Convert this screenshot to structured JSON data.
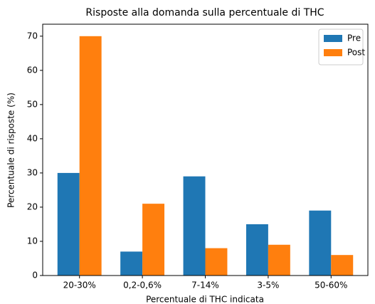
{
  "chart_data": {
    "type": "bar",
    "title": "Risposte alla domanda sulla percentuale di THC",
    "x_label": "Percentuale di THC indicata",
    "y_label": "Percentuale di risposte (%)",
    "categories": [
      "20-30%",
      "0,2-0,6%",
      "7-14%",
      "3-5%",
      "50-60%"
    ],
    "series": [
      {
        "name": "Pre",
        "color": "#1f77b4",
        "values": [
          30,
          7,
          29,
          15,
          19
        ]
      },
      {
        "name": "Post",
        "color": "#ff7f0e",
        "values": [
          70,
          21,
          8,
          9,
          6
        ]
      }
    ],
    "ylim": [
      0,
      73.5
    ],
    "yticks": [
      0,
      10,
      20,
      30,
      40,
      50,
      60,
      70
    ],
    "legend": "upper right"
  }
}
